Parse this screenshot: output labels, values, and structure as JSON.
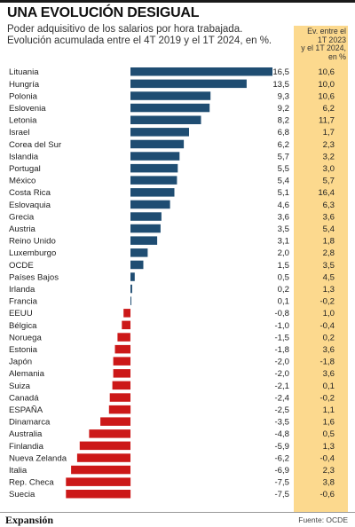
{
  "title": "UNA EVOLUCIÓN DESIGUAL",
  "subtitle_lines": [
    "Poder adquisitivo de los salarios por hora trabajada.",
    "Evolución acumulada entre el 4T 2019 y el 1T 2024, en %."
  ],
  "column_header_lines": [
    "Ev. entre el",
    "1T 2023",
    "y el 1T 2024,",
    "en %"
  ],
  "footer": {
    "brand": "Expansión",
    "source": "Fuente: OCDE"
  },
  "colors": {
    "positive": "#1f4d72",
    "negative": "#cc1818",
    "column_bg": "#fcd98e"
  },
  "chart_data": {
    "type": "bar",
    "orientation": "horizontal",
    "categories": [
      "Lituania",
      "Hungría",
      "Polonia",
      "Eslovenia",
      "Letonia",
      "Israel",
      "Corea del Sur",
      "Islandia",
      "Portugal",
      "México",
      "Costa Rica",
      "Eslovaquia",
      "Grecia",
      "Austria",
      "Reino Unido",
      "Luxemburgo",
      "OCDE",
      "Países Bajos",
      "Irlanda",
      "Francia",
      "EEUU",
      "Bélgica",
      "Noruega",
      "Estonia",
      "Japón",
      "Alemania",
      "Suiza",
      "Canadá",
      "ESPAÑA",
      "Dinamarca",
      "Australia",
      "Finlandia",
      "Nueva Zelanda",
      "Italia",
      "Rep. Checa",
      "Suecia"
    ],
    "values": [
      16.5,
      13.5,
      9.3,
      9.2,
      8.2,
      6.8,
      6.2,
      5.7,
      5.5,
      5.4,
      5.1,
      4.6,
      3.6,
      3.5,
      3.1,
      2.0,
      1.5,
      0.5,
      0.2,
      0.1,
      -0.8,
      -1.0,
      -1.5,
      -1.8,
      -2.0,
      -2.0,
      -2.1,
      -2.4,
      -2.5,
      -3.5,
      -4.8,
      -5.9,
      -6.2,
      -6.9,
      -7.5,
      -7.5
    ],
    "value_labels": [
      "16,5",
      "13,5",
      "9,3",
      "9,2",
      "8,2",
      "6,8",
      "6,2",
      "5,7",
      "5,5",
      "5,4",
      "5,1",
      "4,6",
      "3,6",
      "3,5",
      "3,1",
      "2,0",
      "1,5",
      "0,5",
      "0,2",
      "0,1",
      "-0,8",
      "-1,0",
      "-1,5",
      "-1,8",
      "-2,0",
      "-2,0",
      "-2,1",
      "-2,4",
      "-2,5",
      "-3,5",
      "-4,8",
      "-5,9",
      "-6,2",
      "-6,9",
      "-7,5",
      "-7,5"
    ],
    "secondary_values": [
      10.6,
      10.0,
      10.6,
      6.2,
      11.7,
      1.7,
      2.3,
      3.2,
      3.0,
      5.7,
      16.4,
      6.3,
      3.6,
      5.4,
      1.8,
      2.8,
      3.5,
      4.5,
      1.3,
      -0.2,
      1.0,
      -0.4,
      0.2,
      3.6,
      -1.8,
      3.6,
      0.1,
      -0.2,
      1.1,
      1.6,
      0.5,
      1.3,
      -0.4,
      2.3,
      3.8,
      -0.6
    ],
    "secondary_labels": [
      "10,6",
      "10,0",
      "10,6",
      "6,2",
      "11,7",
      "1,7",
      "2,3",
      "3,2",
      "3,0",
      "5,7",
      "16,4",
      "6,3",
      "3,6",
      "5,4",
      "1,8",
      "2,8",
      "3,5",
      "4,5",
      "1,3",
      "-0,2",
      "1,0",
      "-0,4",
      "0,2",
      "3,6",
      "-1,8",
      "3,6",
      "0,1",
      "-0,2",
      "1,1",
      "1,6",
      "0,5",
      "1,3",
      "-0,4",
      "2,3",
      "3,8",
      "-0,6"
    ],
    "xlim": [
      -7.5,
      16.5
    ],
    "grid": false,
    "legend": "none"
  }
}
